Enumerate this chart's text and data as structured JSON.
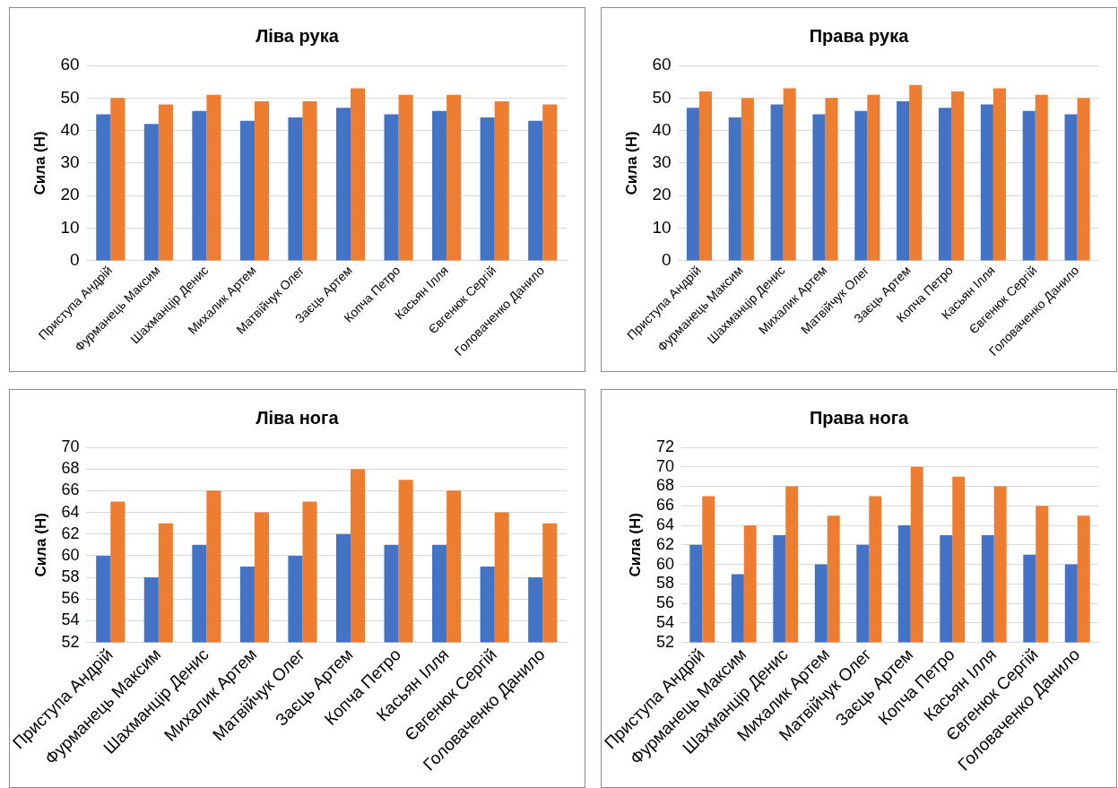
{
  "chart_data": [
    {
      "type": "bar",
      "title": "Ліва рука",
      "ylabel": "Сила (Н)",
      "categories": [
        "Приступа Андрій",
        "Фурманець Максим",
        "Шахманцір Денис",
        "Михалик Артем",
        "Матвійчук Олег",
        "Заєць Артем",
        "Копча Петро",
        "Касьян Ілля",
        "Євгенюк Сергій",
        "Головаченко Данило"
      ],
      "series": [
        {
          "color": "#4472c4",
          "values": [
            45,
            42,
            46,
            43,
            44,
            47,
            45,
            46,
            44,
            43
          ]
        },
        {
          "color": "#ed7d31",
          "values": [
            50,
            48,
            51,
            49,
            49,
            53,
            51,
            51,
            49,
            48
          ]
        }
      ],
      "ylim": [
        0,
        60
      ],
      "yticks": [
        0,
        10,
        20,
        30,
        40,
        50,
        60
      ],
      "grid": "y",
      "legend": false
    },
    {
      "type": "bar",
      "title": "Права рука",
      "ylabel": "Сила (Н)",
      "categories": [
        "Приступа Андрій",
        "Фурманець Максим",
        "Шахманцір Денис",
        "Михалик Артем",
        "Матвійчук Олег",
        "Заєць Артем",
        "Копча Петро",
        "Касьян Ілля",
        "Євгенюк Сергій",
        "Головаченко Данило"
      ],
      "series": [
        {
          "color": "#4472c4",
          "values": [
            47,
            44,
            48,
            45,
            46,
            49,
            47,
            48,
            46,
            45
          ]
        },
        {
          "color": "#ed7d31",
          "values": [
            52,
            50,
            53,
            50,
            51,
            54,
            52,
            53,
            51,
            50
          ]
        }
      ],
      "ylim": [
        0,
        60
      ],
      "yticks": [
        0,
        10,
        20,
        30,
        40,
        50,
        60
      ],
      "grid": "y",
      "legend": false
    },
    {
      "type": "bar",
      "title": "Ліва нога",
      "ylabel": "Сила (Н)",
      "categories": [
        "Приступа Андрій",
        "Фурманець Максим",
        "Шахманцір Денис",
        "Михалик Артем",
        "Матвійчук Олег",
        "Заєць Артем",
        "Копча Петро",
        "Касьян Ілля",
        "Євгенюк Сергій",
        "Головаченко Данило"
      ],
      "series": [
        {
          "color": "#4472c4",
          "values": [
            60,
            58,
            61,
            59,
            60,
            62,
            61,
            61,
            59,
            58
          ]
        },
        {
          "color": "#ed7d31",
          "values": [
            65,
            63,
            66,
            64,
            65,
            68,
            67,
            66,
            64,
            63
          ]
        }
      ],
      "ylim": [
        52,
        70
      ],
      "yticks": [
        52,
        54,
        56,
        58,
        60,
        62,
        64,
        66,
        68,
        70
      ],
      "grid": "y",
      "legend": false
    },
    {
      "type": "bar",
      "title": "Права нога",
      "ylabel": "Сила (Н)",
      "categories": [
        "Приступа Андрій",
        "Фурманець Максим",
        "Шахманцір Денис",
        "Михалик Артем",
        "Матвійчук Олег",
        "Заєць Артем",
        "Копча Петро",
        "Касьян Ілля",
        "Євгенюк Сергій",
        "Головаченко Данило"
      ],
      "series": [
        {
          "color": "#4472c4",
          "values": [
            62,
            59,
            63,
            60,
            62,
            64,
            63,
            63,
            61,
            60
          ]
        },
        {
          "color": "#ed7d31",
          "values": [
            67,
            64,
            68,
            65,
            67,
            70,
            69,
            68,
            66,
            65
          ]
        }
      ],
      "ylim": [
        52,
        72
      ],
      "yticks": [
        52,
        54,
        56,
        58,
        60,
        62,
        64,
        66,
        68,
        70,
        72
      ],
      "grid": "y",
      "legend": false
    }
  ]
}
